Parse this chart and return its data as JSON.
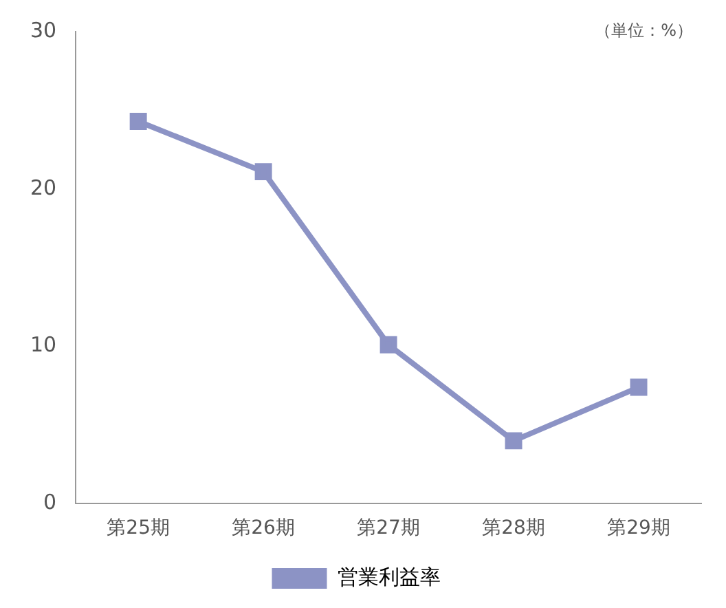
{
  "chart_data": {
    "type": "line",
    "categories": [
      "第25期",
      "第26期",
      "第27期",
      "第28期",
      "第29期"
    ],
    "series": [
      {
        "name": "営業利益率",
        "color": "#8c93c5",
        "values": [
          24.3,
          21.1,
          10.1,
          4.0,
          7.4
        ]
      }
    ],
    "ylim": [
      0,
      30
    ],
    "yticks": [
      0,
      10,
      20,
      30
    ],
    "grid": false,
    "legend": "bottom",
    "marker": "square",
    "line_style": "solid",
    "annotations": [
      "（単位：%）"
    ]
  }
}
